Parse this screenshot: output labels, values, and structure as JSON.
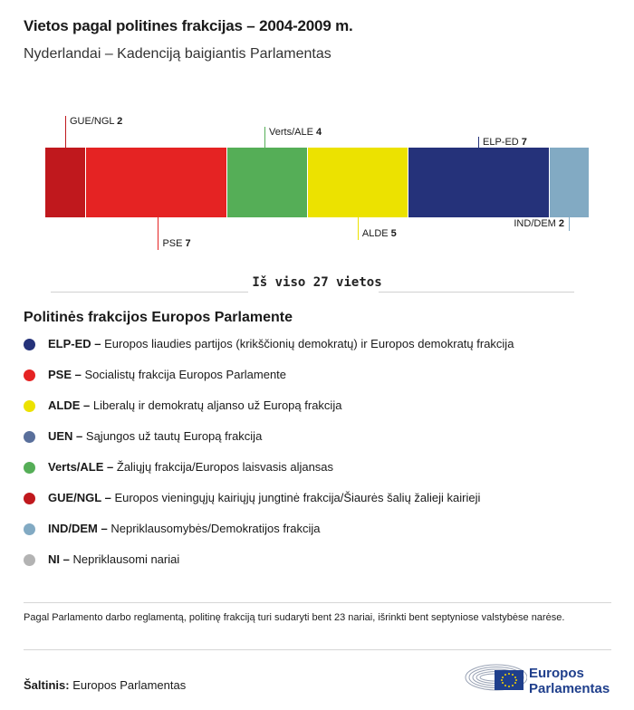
{
  "title": "Vietos pagal politines frakcijas – 2004-2009 m.",
  "subtitle": "Nyderlandai – Kadenciją baigiantis Parlamentas",
  "chart_data": {
    "type": "bar",
    "orientation": "horizontal-stacked",
    "total_seats": 27,
    "categories": [
      "GUE/NGL",
      "PSE",
      "Verts/ALE",
      "ALDE",
      "ELP-ED",
      "IND/DEM"
    ],
    "values": [
      2,
      7,
      4,
      5,
      7,
      2
    ],
    "colors": [
      "#c0181d",
      "#e52323",
      "#55ae57",
      "#ece200",
      "#25327a",
      "#82aac3"
    ],
    "label_positions": [
      "top",
      "bottom",
      "top",
      "bottom",
      "top",
      "bottom"
    ]
  },
  "total_label": "Iš viso 27 vietos",
  "legend_title": "Politinės frakcijos Europos Parlamente",
  "legend": [
    {
      "abbr": "ELP-ED –",
      "text": "Europos liaudies partijos (krikščionių demokratų) ir Europos demokratų frakcija",
      "color": "#25327a"
    },
    {
      "abbr": "PSE –",
      "text": "Socialistų frakcija Europos Parlamente",
      "color": "#e52323"
    },
    {
      "abbr": "ALDE –",
      "text": "Liberalų ir demokratų aljanso už Europą frakcija",
      "color": "#ece200"
    },
    {
      "abbr": "UEN –",
      "text": "Sąjungos už tautų Europą frakcija",
      "color": "#596f9b"
    },
    {
      "abbr": "Verts/ALE –",
      "text": "Žaliųjų frakcija/Europos laisvasis aljansas",
      "color": "#55ae57"
    },
    {
      "abbr": "GUE/NGL –",
      "text": "Europos vieningųjų kairiųjų jungtinė frakcija/Šiaurės šalių žalieji kairieji",
      "color": "#c0181d"
    },
    {
      "abbr": "IND/DEM –",
      "text": "Nepriklausomybės/Demokratijos frakcija",
      "color": "#82aac3"
    },
    {
      "abbr": "NI –",
      "text": "Nepriklausomi nariai",
      "color": "#b3b3b3"
    }
  ],
  "note": "Pagal Parlamento darbo reglamentą, politinę frakciją turi sudaryti bent 23 nariai, išrinkti bent septyniose valstybėse narėse.",
  "source_label": "Šaltinis:",
  "source_value": "Europos Parlamentas",
  "logo": {
    "line1": "Europos",
    "line2": "Parlamentas",
    "icon": "european-parliament-hemicycle-icon"
  }
}
